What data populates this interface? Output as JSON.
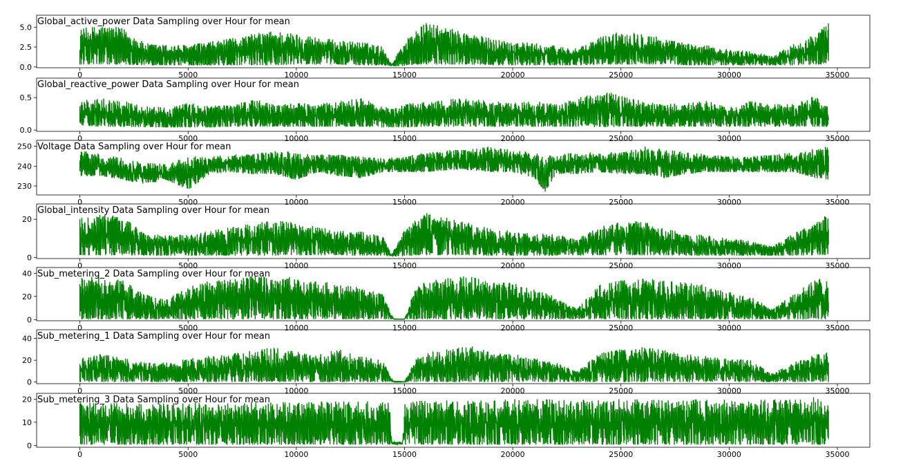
{
  "chart_data": [
    {
      "type": "line",
      "title": "Global_active_power Data Sampling over Hour for mean",
      "color": "#008000",
      "xlim": [
        -2000,
        36500
      ],
      "ylim": [
        -0.1,
        6.5
      ],
      "xticks": [
        0,
        5000,
        10000,
        15000,
        20000,
        25000,
        30000,
        35000
      ],
      "xtick_labels": [
        "0",
        "5000",
        "10000",
        "15000",
        "20000",
        "25000",
        "30000",
        "35000"
      ],
      "yticks": [
        0.0,
        2.5,
        5.0
      ],
      "ytick_labels": [
        "0.0",
        "2.5",
        "5.0"
      ],
      "x_range": [
        0,
        34589
      ],
      "series": [
        {
          "x": [
            0,
            1000,
            2000,
            3000,
            4000,
            5000,
            6000,
            7000,
            8000,
            9000,
            10000,
            11000,
            12000,
            13000,
            14000,
            14400,
            14900,
            15500,
            16000,
            17000,
            18000,
            19000,
            20000,
            21000,
            22000,
            23000,
            24000,
            25000,
            26000,
            27000,
            28000,
            29000,
            30000,
            31000,
            32000,
            33000,
            34000,
            34589
          ],
          "y_low": [
            0.3,
            0.3,
            0.3,
            0.2,
            0.2,
            0.2,
            0.2,
            0.2,
            0.2,
            0.2,
            0.3,
            0.3,
            0.3,
            0.2,
            0.2,
            0.1,
            0.1,
            0.3,
            0.3,
            0.3,
            0.3,
            0.2,
            0.2,
            0.2,
            0.2,
            0.2,
            0.3,
            0.3,
            0.3,
            0.3,
            0.2,
            0.2,
            0.2,
            0.2,
            0.2,
            0.2,
            0.3,
            0.3
          ],
          "y_high": [
            4.8,
            5.3,
            4.9,
            3.0,
            2.8,
            2.8,
            3.2,
            3.6,
            4.2,
            4.6,
            4.2,
            3.8,
            3.3,
            3.2,
            2.6,
            0.3,
            3.0,
            4.6,
            5.6,
            4.9,
            4.3,
            3.6,
            3.3,
            3.0,
            2.7,
            2.3,
            3.8,
            4.5,
            4.4,
            3.6,
            3.0,
            2.7,
            2.2,
            2.0,
            1.4,
            3.0,
            4.2,
            5.6
          ]
        }
      ]
    },
    {
      "type": "line",
      "title": "Global_reactive_power Data Sampling over Hour for mean",
      "color": "#008000",
      "xlim": [
        -2000,
        36500
      ],
      "ylim": [
        -0.02,
        0.8
      ],
      "xticks": [
        0,
        5000,
        10000,
        15000,
        20000,
        25000,
        30000,
        35000
      ],
      "xtick_labels": [
        "0",
        "5000",
        "10000",
        "15000",
        "20000",
        "25000",
        "30000",
        "35000"
      ],
      "yticks": [
        0.0,
        0.5
      ],
      "ytick_labels": [
        "0.0",
        "0.5"
      ],
      "x_range": [
        0,
        34589
      ],
      "series": [
        {
          "x": [
            0,
            1000,
            2000,
            3000,
            4000,
            5000,
            6000,
            7000,
            8000,
            9000,
            10000,
            11000,
            12000,
            13000,
            14000,
            15000,
            16000,
            17000,
            18000,
            19000,
            20000,
            21000,
            22000,
            23000,
            24000,
            25000,
            26000,
            27000,
            28000,
            29000,
            30000,
            31000,
            32000,
            33000,
            34000,
            34589
          ],
          "y_low": [
            0.05,
            0.05,
            0.05,
            0.04,
            0.04,
            0.04,
            0.04,
            0.05,
            0.05,
            0.05,
            0.05,
            0.05,
            0.05,
            0.05,
            0.04,
            0.04,
            0.05,
            0.05,
            0.05,
            0.05,
            0.05,
            0.05,
            0.05,
            0.05,
            0.04,
            0.05,
            0.05,
            0.05,
            0.05,
            0.05,
            0.05,
            0.05,
            0.05,
            0.05,
            0.05,
            0.05
          ],
          "y_high": [
            0.45,
            0.5,
            0.45,
            0.38,
            0.35,
            0.42,
            0.38,
            0.4,
            0.48,
            0.4,
            0.42,
            0.4,
            0.45,
            0.5,
            0.35,
            0.4,
            0.45,
            0.48,
            0.5,
            0.45,
            0.42,
            0.45,
            0.4,
            0.5,
            0.6,
            0.55,
            0.45,
            0.4,
            0.42,
            0.45,
            0.35,
            0.45,
            0.4,
            0.4,
            0.55,
            0.35
          ]
        }
      ]
    },
    {
      "type": "line",
      "title": "Voltage Data Sampling over Hour for mean",
      "color": "#008000",
      "xlim": [
        -2000,
        36500
      ],
      "ylim": [
        225.5,
        253
      ],
      "xticks": [
        0,
        5000,
        10000,
        15000,
        20000,
        25000,
        30000,
        35000
      ],
      "xtick_labels": [
        "0",
        "5000",
        "10000",
        "15000",
        "20000",
        "25000",
        "30000",
        "35000"
      ],
      "yticks": [
        230,
        240,
        250
      ],
      "ytick_labels": [
        "230",
        "240",
        "250"
      ],
      "x_range": [
        0,
        34589
      ],
      "series": [
        {
          "x": [
            0,
            1000,
            2000,
            3000,
            4000,
            5000,
            6000,
            7000,
            8000,
            9000,
            10000,
            11000,
            12000,
            13000,
            14000,
            15000,
            16000,
            17000,
            18000,
            19000,
            20000,
            21000,
            21500,
            22000,
            23000,
            24000,
            25000,
            26000,
            27000,
            28000,
            29000,
            30000,
            31000,
            32000,
            33000,
            34000,
            34589
          ],
          "y_low": [
            235,
            235,
            233,
            231,
            233,
            228,
            236,
            237,
            236,
            236,
            233,
            237,
            235,
            234,
            237,
            237,
            237,
            238,
            238,
            237,
            237,
            234,
            227,
            236,
            236,
            237,
            236,
            236,
            234,
            236,
            237,
            237,
            237,
            237,
            237,
            234,
            233
          ],
          "y_high": [
            248,
            246,
            244,
            242,
            241,
            245,
            245,
            246,
            246,
            248,
            247,
            246,
            246,
            245,
            244,
            245,
            247,
            248,
            249,
            250,
            248,
            247,
            245,
            246,
            247,
            247,
            247,
            250,
            249,
            247,
            246,
            245,
            245,
            246,
            247,
            249,
            250
          ]
        }
      ]
    },
    {
      "type": "line",
      "title": "Global_intensity Data Sampling over Hour for mean",
      "color": "#008000",
      "xlim": [
        -2000,
        36500
      ],
      "ylim": [
        -0.5,
        28
      ],
      "xticks": [
        0,
        5000,
        10000,
        15000,
        20000,
        25000,
        30000,
        35000
      ],
      "xtick_labels": [
        "0",
        "5000",
        "10000",
        "15000",
        "20000",
        "25000",
        "30000",
        "35000"
      ],
      "yticks": [
        0,
        20
      ],
      "ytick_labels": [
        "0",
        "20"
      ],
      "x_range": [
        0,
        34589
      ],
      "series": [
        {
          "x": [
            0,
            1000,
            2000,
            3000,
            4000,
            5000,
            6000,
            7000,
            8000,
            9000,
            10000,
            11000,
            12000,
            13000,
            14000,
            14400,
            14900,
            15500,
            16000,
            17000,
            18000,
            19000,
            20000,
            21000,
            22000,
            23000,
            24000,
            25000,
            26000,
            27000,
            28000,
            29000,
            30000,
            31000,
            32000,
            33000,
            34000,
            34589
          ],
          "y_low": [
            1.2,
            1.2,
            1.2,
            1.0,
            1.0,
            1.0,
            1.0,
            1.0,
            1.0,
            1.0,
            1.2,
            1.2,
            1.2,
            1.0,
            1.0,
            0.6,
            0.6,
            1.2,
            1.2,
            1.2,
            1.2,
            1.0,
            1.0,
            1.0,
            1.0,
            1.0,
            1.2,
            1.2,
            1.2,
            1.2,
            1.0,
            1.0,
            1.0,
            1.0,
            1.0,
            1.0,
            1.2,
            1.2
          ],
          "y_high": [
            21,
            23,
            21,
            13,
            12,
            12,
            14,
            16,
            18,
            20,
            18,
            16,
            14,
            14,
            11,
            1.5,
            13,
            20,
            24,
            21,
            18,
            15,
            14,
            13,
            12,
            10,
            16,
            19,
            19,
            15,
            13,
            12,
            10,
            9,
            6,
            13,
            18,
            24
          ]
        }
      ]
    },
    {
      "type": "line",
      "title": "Sub_metering_2 Data Sampling over Hour for mean",
      "color": "#008000",
      "xlim": [
        -2000,
        36500
      ],
      "ylim": [
        -1,
        45
      ],
      "xticks": [
        0,
        5000,
        10000,
        15000,
        20000,
        25000,
        30000,
        35000
      ],
      "xtick_labels": [
        "0",
        "5000",
        "10000",
        "15000",
        "20000",
        "25000",
        "30000",
        "35000"
      ],
      "yticks": [
        0,
        20,
        40
      ],
      "ytick_labels": [
        "0",
        "20",
        "40"
      ],
      "x_range": [
        0,
        34589
      ],
      "series": [
        {
          "x": [
            0,
            1000,
            2000,
            3000,
            4000,
            5000,
            6000,
            7000,
            8000,
            9000,
            10000,
            11000,
            12000,
            13000,
            14000,
            14500,
            15000,
            15500,
            16000,
            17000,
            18000,
            19000,
            20000,
            21000,
            22000,
            23000,
            24000,
            25000,
            26000,
            27000,
            28000,
            29000,
            30000,
            31000,
            32000,
            33000,
            34000,
            34589
          ],
          "y_low": [
            0.3,
            0.3,
            0.3,
            0.3,
            0.3,
            0.3,
            0.3,
            0.3,
            0.3,
            0.3,
            0.3,
            0.3,
            0.3,
            0.3,
            0.3,
            0.3,
            0.3,
            0.3,
            0.3,
            0.3,
            0.3,
            0.3,
            0.3,
            0.3,
            0.3,
            0.3,
            0.3,
            0.3,
            0.3,
            0.3,
            0.3,
            0.3,
            0.3,
            0.3,
            0.3,
            0.3,
            0.3,
            0.3
          ],
          "y_high": [
            36,
            38,
            34,
            22,
            18,
            28,
            34,
            36,
            38,
            39,
            36,
            34,
            30,
            28,
            22,
            0.5,
            0.5,
            28,
            34,
            36,
            38,
            33,
            32,
            26,
            20,
            10,
            30,
            34,
            36,
            34,
            32,
            30,
            24,
            20,
            10,
            22,
            36,
            38
          ]
        }
      ]
    },
    {
      "type": "line",
      "title": "Sub_metering_1 Data Sampling over Hour for mean",
      "color": "#008000",
      "xlim": [
        -2000,
        36500
      ],
      "ylim": [
        -1.5,
        48
      ],
      "xticks": [
        0,
        5000,
        10000,
        15000,
        20000,
        25000,
        30000,
        35000
      ],
      "xtick_labels": [
        "0",
        "5000",
        "10000",
        "15000",
        "20000",
        "25000",
        "30000",
        "35000"
      ],
      "yticks": [
        0,
        20,
        40
      ],
      "ytick_labels": [
        "0",
        "20",
        "40"
      ],
      "x_range": [
        0,
        34589
      ],
      "series": [
        {
          "x": [
            0,
            1000,
            2000,
            3000,
            4000,
            5000,
            6000,
            7000,
            8000,
            9000,
            10000,
            11000,
            12000,
            13000,
            14000,
            14500,
            15000,
            15500,
            16000,
            17000,
            18000,
            19000,
            20000,
            21000,
            22000,
            23000,
            24000,
            25000,
            26000,
            27000,
            28000,
            29000,
            30000,
            31000,
            32000,
            33000,
            34000,
            34589
          ],
          "y_low": [
            0,
            0,
            0,
            0,
            0,
            0,
            0,
            0,
            0,
            0,
            0,
            0,
            0,
            0,
            0,
            0,
            0,
            0,
            0,
            0,
            0,
            0,
            0,
            0,
            0,
            0,
            0,
            0,
            0,
            0,
            0,
            0,
            0,
            0,
            0,
            0,
            0,
            0
          ],
          "y_high": [
            22,
            26,
            22,
            18,
            18,
            22,
            24,
            26,
            30,
            32,
            28,
            26,
            30,
            24,
            20,
            0.5,
            0.5,
            22,
            28,
            30,
            34,
            28,
            26,
            22,
            18,
            10,
            28,
            30,
            32,
            30,
            26,
            24,
            22,
            20,
            8,
            18,
            26,
            28
          ]
        }
      ]
    },
    {
      "type": "line",
      "title": "Sub_metering_3 Data Sampling over Hour for mean",
      "color": "#008000",
      "xlim": [
        -2000,
        36500
      ],
      "ylim": [
        -0.8,
        22.5
      ],
      "xticks": [
        0,
        5000,
        10000,
        15000,
        20000,
        25000,
        30000,
        35000
      ],
      "xtick_labels": [
        "0",
        "5000",
        "10000",
        "15000",
        "20000",
        "25000",
        "30000",
        "35000"
      ],
      "yticks": [
        0,
        10,
        20
      ],
      "ytick_labels": [
        "0",
        "10",
        "20"
      ],
      "x_range": [
        0,
        34589
      ],
      "series": [
        {
          "x": [
            0,
            1000,
            2000,
            3000,
            4000,
            5000,
            6000,
            7000,
            8000,
            9000,
            10000,
            11000,
            12000,
            13000,
            14000,
            14300,
            14400,
            14900,
            15000,
            16000,
            17000,
            18000,
            19000,
            20000,
            21000,
            22000,
            23000,
            24000,
            25000,
            26000,
            27000,
            28000,
            29000,
            30000,
            31000,
            32000,
            33000,
            34000,
            34589
          ],
          "y_low": [
            0.3,
            0.3,
            0.3,
            0.3,
            0.3,
            0.3,
            0.3,
            0.3,
            0.3,
            0.3,
            0.3,
            0.3,
            0.3,
            0.3,
            0.3,
            0.3,
            0.5,
            0.5,
            0.3,
            0.3,
            0.3,
            0.3,
            0.3,
            0.3,
            0.3,
            0.3,
            0.3,
            0.3,
            0.3,
            0.3,
            0.3,
            0.3,
            0.3,
            0.3,
            0.3,
            0.3,
            0.3,
            0.3,
            0.3
          ],
          "y_high": [
            18.5,
            18.5,
            18.5,
            18.3,
            18.3,
            18.5,
            18.5,
            18.5,
            19,
            19,
            19,
            19,
            19,
            19,
            19.3,
            19.3,
            1.5,
            1.5,
            19.5,
            19.5,
            19.5,
            19.5,
            19.5,
            20,
            20,
            20,
            20,
            20,
            20,
            20,
            20,
            20,
            20,
            20,
            20,
            20,
            20,
            21,
            18.5
          ]
        }
      ]
    }
  ]
}
